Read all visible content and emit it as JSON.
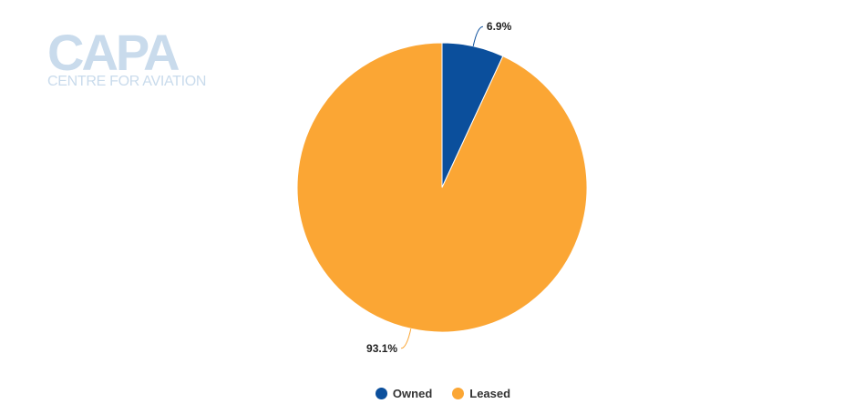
{
  "logo": {
    "main": "CAPA",
    "sub": "CENTRE FOR AVIATION"
  },
  "chart_data": {
    "type": "pie",
    "title": "",
    "categories": [
      "Owned",
      "Leased"
    ],
    "values": [
      6.9,
      93.1
    ],
    "labels": [
      "6.9%",
      "93.1%"
    ],
    "colors": [
      "#0b4f9c",
      "#fba634"
    ],
    "start_angle_deg": 0,
    "direction": "clockwise",
    "legend_position": "bottom-center"
  },
  "legend": {
    "items": [
      {
        "label": "Owned",
        "color": "#0b4f9c"
      },
      {
        "label": "Leased",
        "color": "#fba634"
      }
    ]
  }
}
